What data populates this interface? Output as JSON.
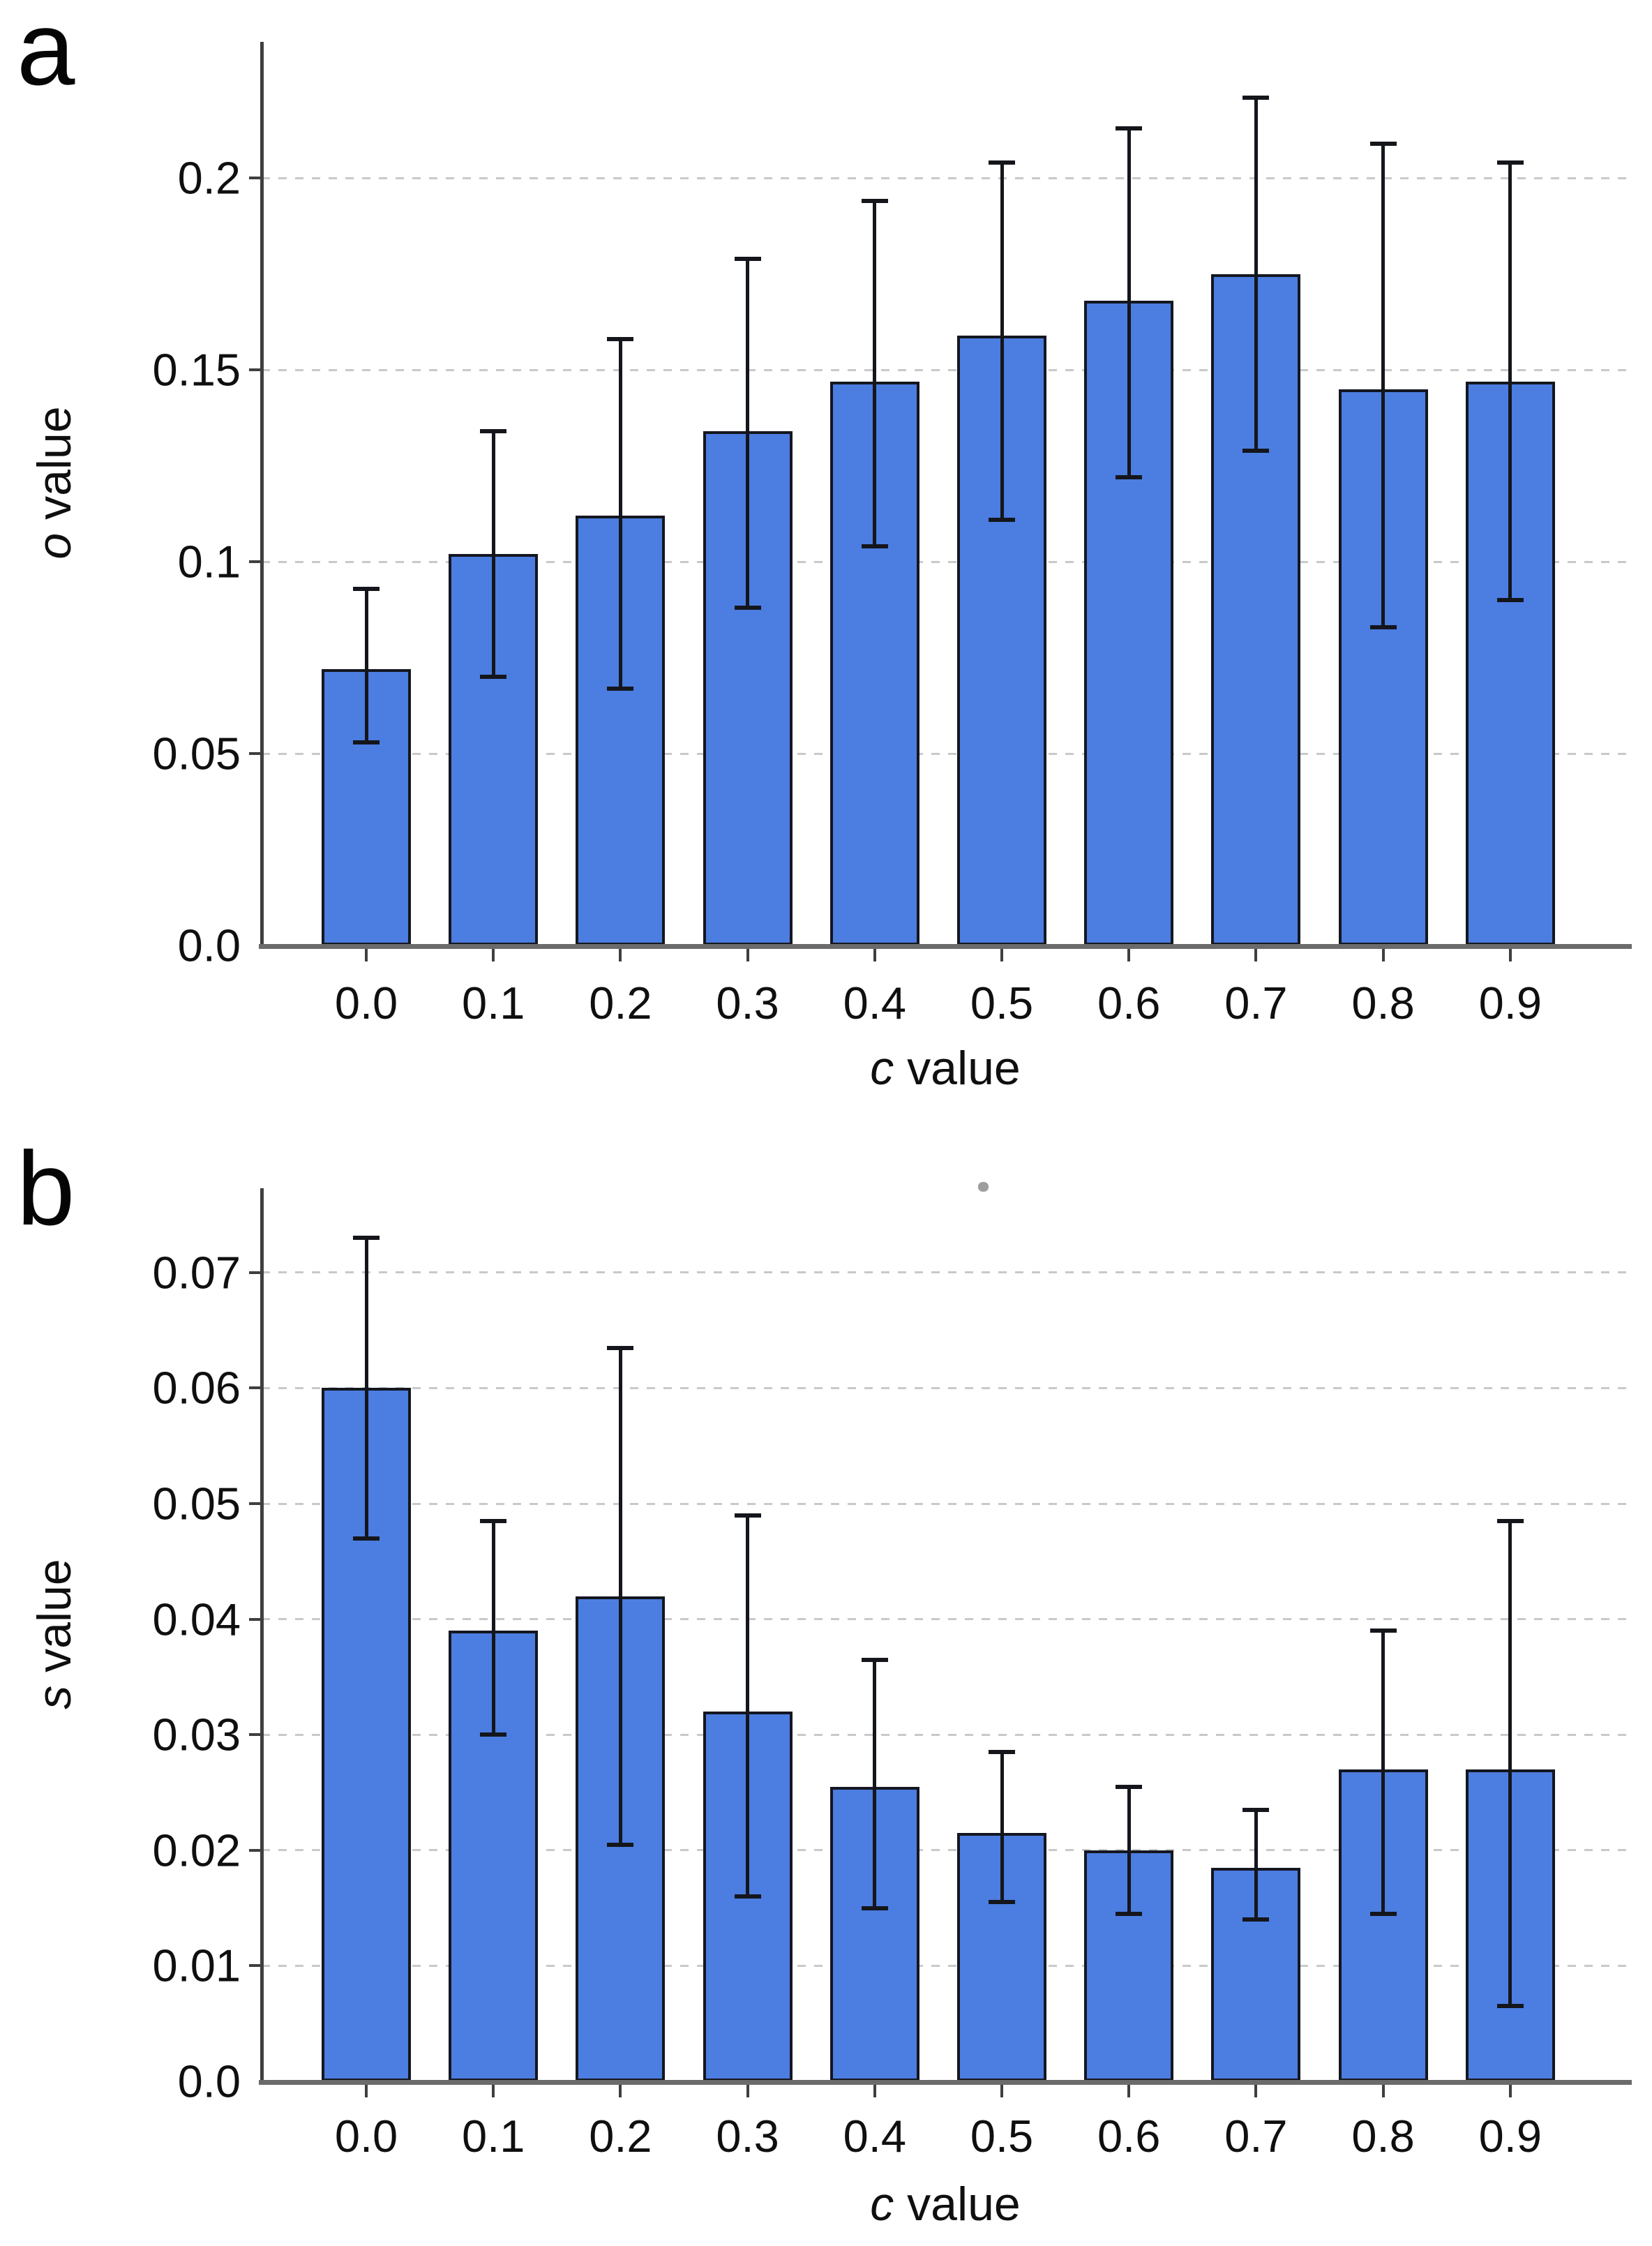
{
  "figure": {
    "panel_a_label": "a",
    "panel_b_label": "b"
  },
  "colors": {
    "bar_fill": "#4c7de0",
    "bar_border": "#141720",
    "error_bar": "#14161c",
    "gridline": "#c9c9c9",
    "y_axis": "#3f3f3f",
    "x_axis": "#6b6b6b",
    "text": "#0f0f0f"
  },
  "chart_data": [
    {
      "type": "bar",
      "panel": "a",
      "categories": [
        "0.0",
        "0.1",
        "0.2",
        "0.3",
        "0.4",
        "0.5",
        "0.6",
        "0.7",
        "0.8",
        "0.9"
      ],
      "values": [
        0.072,
        0.102,
        0.112,
        0.134,
        0.147,
        0.159,
        0.168,
        0.175,
        0.145,
        0.147
      ],
      "error_low": [
        0.053,
        0.07,
        0.067,
        0.088,
        0.104,
        0.111,
        0.122,
        0.129,
        0.083,
        0.09
      ],
      "error_high": [
        0.093,
        0.134,
        0.158,
        0.179,
        0.194,
        0.204,
        0.213,
        0.221,
        0.209,
        0.204
      ],
      "xlabel": {
        "italic": "c",
        "rest": " value"
      },
      "ylabel": {
        "italic": "o",
        "rest": " value"
      },
      "ylim": [
        0,
        0.2355
      ],
      "ytick_values": [
        0,
        0.05,
        0.1,
        0.15,
        0.2
      ],
      "ytick_labels": [
        "0.0",
        "0.05",
        "0.1",
        "0.15",
        "0.2"
      ],
      "grid": "horizontal-dashed",
      "legend": "none"
    },
    {
      "type": "bar",
      "panel": "b",
      "categories": [
        "0.0",
        "0.1",
        "0.2",
        "0.3",
        "0.4",
        "0.5",
        "0.6",
        "0.7",
        "0.8",
        "0.9"
      ],
      "values": [
        0.06,
        0.039,
        0.042,
        0.032,
        0.0255,
        0.0215,
        0.02,
        0.0185,
        0.027,
        0.027
      ],
      "error_low": [
        0.047,
        0.03,
        0.0205,
        0.016,
        0.015,
        0.0155,
        0.0145,
        0.014,
        0.0145,
        0.0065
      ],
      "error_high": [
        0.073,
        0.0485,
        0.0635,
        0.049,
        0.0365,
        0.0285,
        0.0255,
        0.0235,
        0.039,
        0.0485
      ],
      "xlabel": {
        "italic": "c",
        "rest": " value"
      },
      "ylabel": {
        "italic": "s",
        "rest": " value"
      },
      "ylim": [
        0,
        0.0773
      ],
      "ytick_values": [
        0,
        0.01,
        0.02,
        0.03,
        0.04,
        0.05,
        0.06,
        0.07
      ],
      "ytick_labels": [
        "0.0",
        "0.01",
        "0.02",
        "0.03",
        "0.04",
        "0.05",
        "0.06",
        "0.07"
      ],
      "grid": "horizontal-dashed",
      "legend": "none"
    }
  ]
}
